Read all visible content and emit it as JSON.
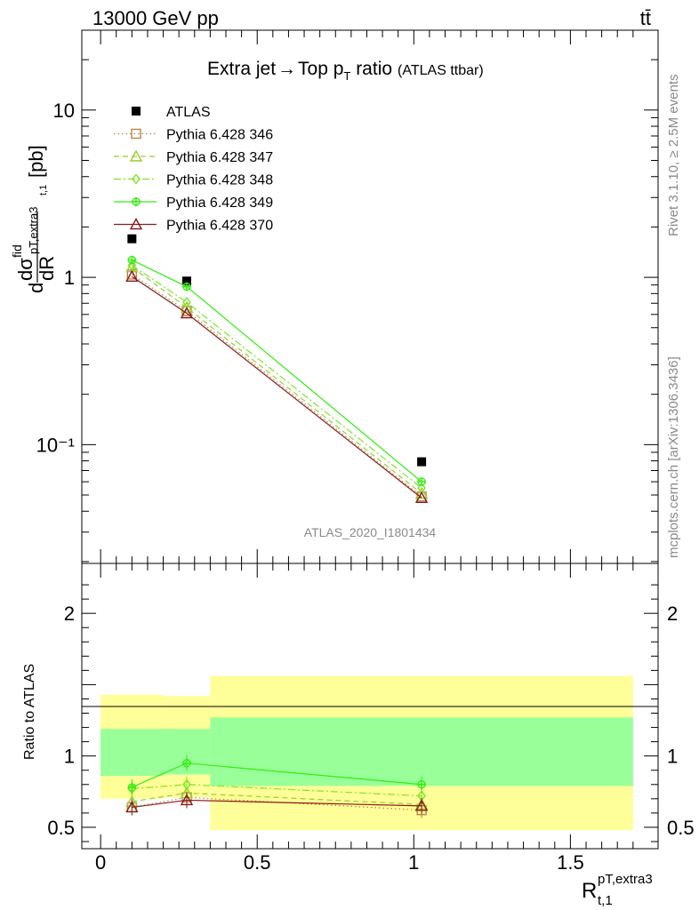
{
  "header": {
    "energy_label": "13000 GeV pp",
    "process_label": "tt̄"
  },
  "side_labels": {
    "rivet": "Rivet 3.1.10, ≥ 2.5M events",
    "mcplots": "mcplots.cern.ch [arXiv:1306.3436]"
  },
  "watermark": "ATLAS_2020_I1801434",
  "colors": {
    "data": "#000000",
    "band_inner": "#99ff99",
    "band_outer": "#ffff99",
    "p346": "#b8864b",
    "p347": "#9acd32",
    "p348": "#7fe52a",
    "p349": "#33ee11",
    "p370": "#8b1a1a"
  },
  "chart_data": [
    {
      "type": "line",
      "title": "Extra jet → Top pT ratio (ATLAS ttbar)",
      "title_parts": {
        "main": "Extra jet",
        "arrow": "→",
        "rest": "Top p",
        "sub": "T",
        "tail": " ratio",
        "small": "(ATLAS ttbar)"
      },
      "ylabel": "dσfid/dR pT,extra3 t,1 [pb]",
      "ylabel_parts": {
        "d1": "d",
        "sigma": "dσ",
        "fid": "fid",
        "sub": "pT,extra3",
        "dR": "dR",
        "t1": "t,1",
        "unit": "[pb]"
      },
      "yscale": "log",
      "xlim": [
        -0.06,
        1.78
      ],
      "ylim": [
        0.0195,
        30
      ],
      "ytick_labels": [
        "10",
        "1",
        "10⁻¹"
      ],
      "x": [
        0.1,
        0.275,
        1.025
      ],
      "series": [
        {
          "name": "ATLAS",
          "marker": "square-filled",
          "values": [
            1.7,
            0.95,
            0.079
          ],
          "key": "data"
        },
        {
          "name": "Pythia 6.428 346",
          "marker": "square-open",
          "dash": "dotted",
          "values": [
            1.04,
            0.63,
            0.049
          ],
          "key": "p346"
        },
        {
          "name": "Pythia 6.428 347",
          "marker": "triangle-open",
          "dash": "dashed",
          "values": [
            1.15,
            0.66,
            0.051
          ],
          "key": "p347"
        },
        {
          "name": "Pythia 6.428 348",
          "marker": "diamond-open",
          "dash": "dashdot",
          "values": [
            1.18,
            0.71,
            0.055
          ],
          "key": "p348"
        },
        {
          "name": "Pythia 6.428 349",
          "marker": "cross-open",
          "dash": "solid",
          "values": [
            1.27,
            0.88,
            0.06
          ],
          "key": "p349"
        },
        {
          "name": "Pythia 6.428 370",
          "marker": "triangle-open",
          "dash": "solid",
          "values": [
            1.01,
            0.61,
            0.048
          ],
          "key": "p370"
        }
      ],
      "legend_position": "top-left"
    },
    {
      "type": "line",
      "ylabel": "Ratio to ATLAS",
      "xlabel": "R t,1 pT,extra3",
      "xlabel_parts": {
        "main": "R",
        "sup": "pT,extra3",
        "sub": "t,1"
      },
      "xlim": [
        -0.06,
        1.78
      ],
      "ylim": [
        0.35,
        2.35
      ],
      "x_tick_labels": [
        "0",
        "0.5",
        "1",
        "1.5"
      ],
      "x_ticks": [
        0,
        0.5,
        1,
        1.5
      ],
      "y_tick_labels": [
        "0.5",
        "1",
        "2"
      ],
      "y_ticks": [
        0.5,
        1,
        2
      ],
      "bins": [
        [
          0.0,
          0.2
        ],
        [
          0.2,
          0.35
        ],
        [
          0.35,
          1.7
        ]
      ],
      "band_inner": [
        [
          0.86,
          1.19
        ],
        [
          0.87,
          1.19
        ],
        [
          0.79,
          1.27
        ]
      ],
      "band_outer": [
        [
          0.7,
          1.43
        ],
        [
          0.71,
          1.42
        ],
        [
          0.48,
          1.56
        ]
      ],
      "x": [
        0.1,
        0.275,
        1.025
      ],
      "series": [
        {
          "name": "Pythia 6.428 346",
          "values": [
            0.64,
            0.71,
            0.62
          ],
          "key": "p346"
        },
        {
          "name": "Pythia 6.428 347",
          "values": [
            0.68,
            0.74,
            0.66
          ],
          "key": "p347"
        },
        {
          "name": "Pythia 6.428 348",
          "values": [
            0.77,
            0.8,
            0.72
          ],
          "key": "p348"
        },
        {
          "name": "Pythia 6.428 349",
          "values": [
            0.78,
            0.95,
            0.8
          ],
          "key": "p349"
        },
        {
          "name": "Pythia 6.428 370",
          "values": [
            0.64,
            0.69,
            0.65
          ],
          "key": "p370"
        }
      ]
    }
  ]
}
